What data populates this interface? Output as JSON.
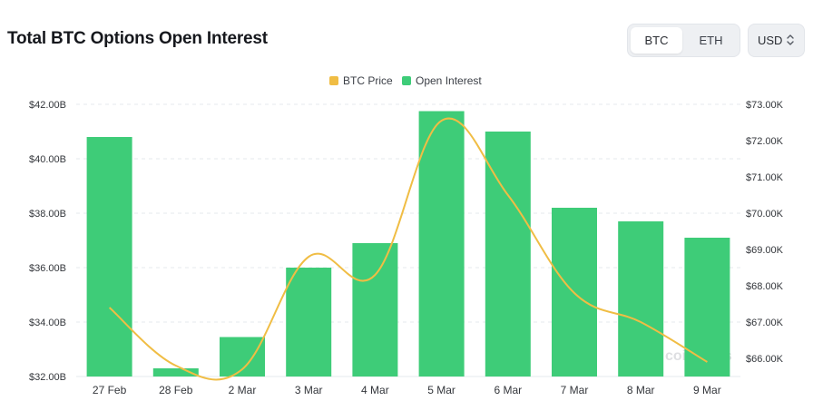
{
  "header": {
    "title": "Total BTC Options Open Interest",
    "asset_toggle": {
      "options": [
        "BTC",
        "ETH"
      ],
      "selected": "BTC"
    },
    "currency": {
      "value": "USD",
      "icon": "chevron-up-down-icon"
    }
  },
  "watermark": {
    "text": "coinglass",
    "icon": "coinglass-logo-icon"
  },
  "colors": {
    "bar": "#3ecc78",
    "line": "#f0bd44",
    "grid": "#e6e8ec",
    "axis_text": "#33363b"
  },
  "chart_data": {
    "type": "bar",
    "title": "Total BTC Options Open Interest",
    "categories": [
      "27 Feb",
      "28 Feb",
      "2 Mar",
      "3 Mar",
      "4 Mar",
      "5 Mar",
      "6 Mar",
      "7 Mar",
      "8 Mar",
      "9 Mar"
    ],
    "series": [
      {
        "name": "Open Interest",
        "type": "bar",
        "axis": "left",
        "color": "#3ecc78",
        "values": [
          40.8,
          32.3,
          33.45,
          36.0,
          36.9,
          41.75,
          41.0,
          38.2,
          37.7,
          37.1
        ]
      },
      {
        "name": "BTC Price",
        "type": "line",
        "axis": "right",
        "color": "#f0bd44",
        "values": [
          67400,
          65800,
          65700,
          68800,
          68300,
          72550,
          70500,
          67800,
          67000,
          65900
        ]
      }
    ],
    "y_left": {
      "min": 32,
      "max": 42,
      "ticks": [
        "$32.00B",
        "$34.00B",
        "$36.00B",
        "$38.00B",
        "$40.00B",
        "$42.00B"
      ]
    },
    "y_right": {
      "min": 65500,
      "max": 73000,
      "ticks": [
        "$66.00K",
        "$67.00K",
        "$68.00K",
        "$69.00K",
        "$70.00K",
        "$71.00K",
        "$72.00K",
        "$73.00K"
      ]
    },
    "legend": {
      "position": "top-center",
      "items": [
        "BTC Price",
        "Open Interest"
      ]
    },
    "grid": true
  }
}
